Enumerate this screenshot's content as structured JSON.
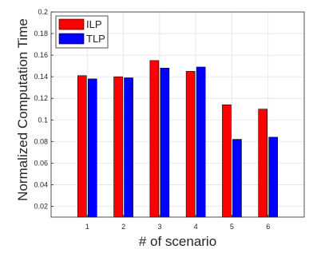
{
  "chart_data": {
    "type": "bar",
    "title": "",
    "xlabel": "# of scenario",
    "ylabel": "Normalized Computation Time",
    "categories": [
      "1",
      "2",
      "3",
      "4",
      "5",
      "6"
    ],
    "series": [
      {
        "name": "ILP",
        "color": "#ff0000",
        "values": [
          0.141,
          0.14,
          0.155,
          0.145,
          0.114,
          0.11
        ]
      },
      {
        "name": "TLP",
        "color": "#0000ff",
        "values": [
          0.138,
          0.139,
          0.148,
          0.149,
          0.082,
          0.084
        ]
      }
    ],
    "ylim": [
      0.01,
      0.2
    ],
    "yticks": [
      "0.02",
      "0.04",
      "0.06",
      "0.08",
      "0.1",
      "0.12",
      "0.14",
      "0.16",
      "0.18",
      "0.2"
    ],
    "grid": true,
    "legend_position": "top-left"
  }
}
